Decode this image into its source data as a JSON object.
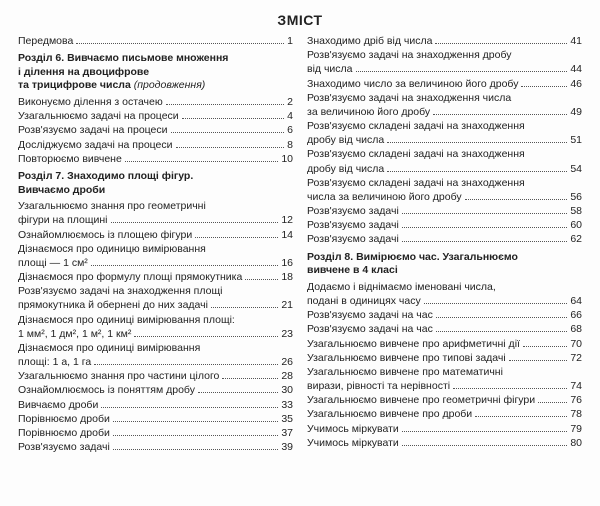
{
  "title": "ЗМІСТ",
  "left": [
    {
      "type": "entry",
      "label": "Передмова",
      "page": "1"
    },
    {
      "type": "section",
      "lines": [
        "Розділ 6. Вивчаємо письмове множення",
        "і ділення на двоцифрове",
        "та трицифрове числа"
      ],
      "suffix": " (продовження)"
    },
    {
      "type": "entry",
      "label": "Виконуємо ділення з остачею",
      "page": "2"
    },
    {
      "type": "entry",
      "label": "Узагальнюємо задачі на процеси",
      "page": "4"
    },
    {
      "type": "entry",
      "label": "Розв'язуємо задачі на процеси",
      "page": "6"
    },
    {
      "type": "entry",
      "label": "Досліджуємо задачі на процеси",
      "page": "8"
    },
    {
      "type": "entry",
      "label": "Повторюємо вивчене",
      "page": "10"
    },
    {
      "type": "section",
      "lines": [
        "Розділ 7. Знаходимо площі фігур.",
        "Вивчаємо дроби"
      ]
    },
    {
      "type": "entry2",
      "line1": "Узагальнюємо знання про геометричні",
      "line2": "фігури на площині",
      "page": "12"
    },
    {
      "type": "entry",
      "label": "Ознайомлюємось із площею фігури",
      "page": "14"
    },
    {
      "type": "entry2",
      "line1": "Дізнаємося про одиницю вимірювання",
      "line2": "площі — 1 см²",
      "page": "16"
    },
    {
      "type": "entry",
      "label": "Дізнаємося про формулу площі прямокутника",
      "page": "18"
    },
    {
      "type": "entry2",
      "line1": "Розв'язуємо задачі на знаходження площі",
      "line2": "прямокутника й обернені до них задачі",
      "page": "21"
    },
    {
      "type": "entry2",
      "line1": "Дізнаємося про одиниці вимірювання площі:",
      "line2": "1 мм², 1 дм², 1 м², 1 км²",
      "page": "23"
    },
    {
      "type": "entry2",
      "line1": "Дізнаємося про одиниці вимірювання",
      "line2": "площі: 1 а, 1 га",
      "page": "26"
    },
    {
      "type": "entry",
      "label": "Узагальнюємо знання про частини цілого",
      "page": "28"
    },
    {
      "type": "entry",
      "label": "Ознайомлюємось із поняттям дробу",
      "page": "30"
    },
    {
      "type": "entry",
      "label": "Вивчаємо дроби",
      "page": "33"
    },
    {
      "type": "entry",
      "label": "Порівнюємо дроби",
      "page": "35"
    },
    {
      "type": "entry",
      "label": "Порівнюємо дроби",
      "page": "37"
    },
    {
      "type": "entry",
      "label": "Розв'язуємо задачі",
      "page": "39"
    }
  ],
  "right": [
    {
      "type": "entry",
      "label": "Знаходимо дріб від числа",
      "page": "41"
    },
    {
      "type": "entry2",
      "line1": "Розв'язуємо задачі на знаходження дробу",
      "line2": "від числа",
      "page": "44"
    },
    {
      "type": "entry",
      "label": "Знаходимо число за величиною його дробу",
      "page": "46"
    },
    {
      "type": "entry2",
      "line1": "Розв'язуємо задачі на знаходження числа",
      "line2": "за величиною його дробу",
      "page": "49"
    },
    {
      "type": "entry2",
      "line1": "Розв'язуємо складені задачі на знаходження",
      "line2": "дробу від числа",
      "page": "51"
    },
    {
      "type": "entry2",
      "line1": "Розв'язуємо складені задачі на знаходження",
      "line2": "дробу від числа",
      "page": "54"
    },
    {
      "type": "entry2",
      "line1": "Розв'язуємо складені задачі на знаходження",
      "line2": "числа за величиною його дробу",
      "page": "56"
    },
    {
      "type": "entry",
      "label": "Розв'язуємо задачі",
      "page": "58"
    },
    {
      "type": "entry",
      "label": "Розв'язуємо задачі",
      "page": "60"
    },
    {
      "type": "entry",
      "label": "Розв'язуємо задачі",
      "page": "62"
    },
    {
      "type": "section",
      "lines": [
        "Розділ 8. Вимірюємо час. Узагальнюємо",
        "вивчене в 4 класі"
      ]
    },
    {
      "type": "entry2",
      "line1": "Додаємо і віднімаємо іменовані числа,",
      "line2": "подані в одиницях часу",
      "page": "64"
    },
    {
      "type": "entry",
      "label": "Розв'язуємо задачі на час",
      "page": "66"
    },
    {
      "type": "entry",
      "label": "Розв'язуємо задачі на час",
      "page": "68"
    },
    {
      "type": "entry",
      "label": "Узагальнюємо вивчене про арифметичні дії",
      "page": "70"
    },
    {
      "type": "entry",
      "label": "Узагальнюємо вивчене про типові задачі",
      "page": "72"
    },
    {
      "type": "entry2",
      "line1": "Узагальнюємо вивчене про математичні",
      "line2": "вирази, рівності та нерівності",
      "page": "74"
    },
    {
      "type": "entry",
      "label": "Узагальнюємо вивчене про геометричні фігури",
      "page": "76"
    },
    {
      "type": "entry",
      "label": "Узагальнюємо вивчене про дроби",
      "page": "78"
    },
    {
      "type": "entry",
      "label": "Учимось міркувати",
      "page": "79"
    },
    {
      "type": "entry",
      "label": "Учимось міркувати",
      "page": "80"
    }
  ]
}
